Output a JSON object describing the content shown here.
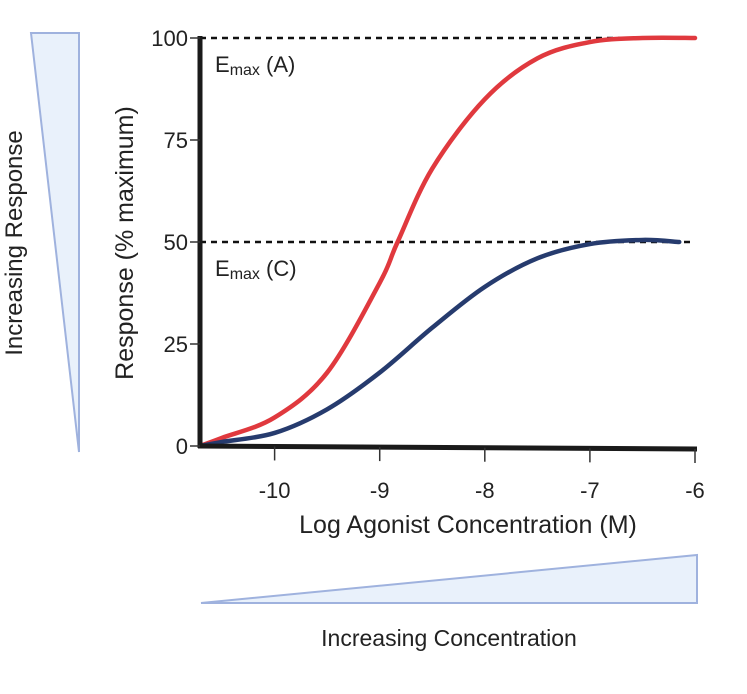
{
  "chart_data": {
    "type": "line",
    "xlabel": "Log Agonist Concentration (M)",
    "ylabel": "Response (% maximum)",
    "xlim": [
      -10.71,
      -6
    ],
    "ylim": [
      0,
      100
    ],
    "x_ticks": [
      -10,
      -9,
      -8,
      -7,
      -6
    ],
    "x_tick_labels": [
      "-10",
      "-9",
      "-8",
      "-7",
      "-6"
    ],
    "y_ticks": [
      0,
      25,
      50,
      75,
      100
    ],
    "y_tick_labels": [
      "0",
      "25",
      "50",
      "75",
      "100"
    ],
    "grid": false,
    "series": [
      {
        "color": "#e0393e",
        "x": [
          -10.71,
          -10.5,
          -10,
          -9.5,
          -9,
          -8.83,
          -8.5,
          -8,
          -7.5,
          -7,
          -6.5,
          -6
        ],
        "y": [
          0,
          2,
          7,
          18,
          40,
          50,
          68,
          85,
          95,
          99,
          100,
          100
        ]
      },
      {
        "color": "#263b6e",
        "x": [
          -10.71,
          -10.5,
          -10,
          -9.5,
          -9,
          -8.5,
          -8,
          -7.5,
          -7,
          -6.5,
          -6.15
        ],
        "y": [
          0,
          1,
          3.2,
          9,
          18,
          29,
          39,
          46,
          49.5,
          50.5,
          50
        ]
      }
    ],
    "reference_lines": [
      {
        "y": 100,
        "label_main": "E",
        "label_sub": "max",
        "label_suffix": " (A)"
      },
      {
        "y": 50,
        "label_main": "E",
        "label_sub": "max",
        "label_suffix": " (C)"
      }
    ],
    "annotations": {
      "left_arrow_label": "Increasing Response",
      "bottom_arrow_label": "Increasing Concentration",
      "wedge_fill": "#e9f1fb",
      "wedge_stroke": "#9fb2de"
    }
  }
}
